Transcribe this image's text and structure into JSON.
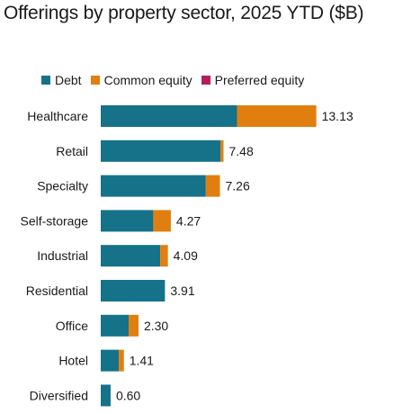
{
  "title": "Offerings by property sector, 2025 YTD ($B)",
  "colors": {
    "debt": "#157289",
    "common_equity": "#e07f10",
    "preferred_equity": "#b41f5a"
  },
  "chart_data": {
    "type": "bar",
    "orientation": "horizontal",
    "stacked": true,
    "title": "Offerings by property sector, 2025 YTD ($B)",
    "categories": [
      "Healthcare",
      "Retail",
      "Specialty",
      "Self-storage",
      "Industrial",
      "Residential",
      "Office",
      "Hotel",
      "Diversified"
    ],
    "series": [
      {
        "name": "Debt",
        "values": [
          8.3,
          7.3,
          6.4,
          3.2,
          3.62,
          3.91,
          1.7,
          1.1,
          0.6
        ]
      },
      {
        "name": "Common equity",
        "values": [
          4.83,
          0.18,
          0.86,
          1.07,
          0.47,
          0.0,
          0.6,
          0.31,
          0.0
        ]
      },
      {
        "name": "Preferred equity",
        "values": [
          0,
          0,
          0,
          0,
          0,
          0,
          0,
          0,
          0
        ]
      }
    ],
    "totals": [
      "13.13",
      "7.48",
      "7.26",
      "4.27",
      "4.09",
      "3.91",
      "2.30",
      "1.41",
      "0.60"
    ],
    "legend_position": "top",
    "grid": false
  }
}
